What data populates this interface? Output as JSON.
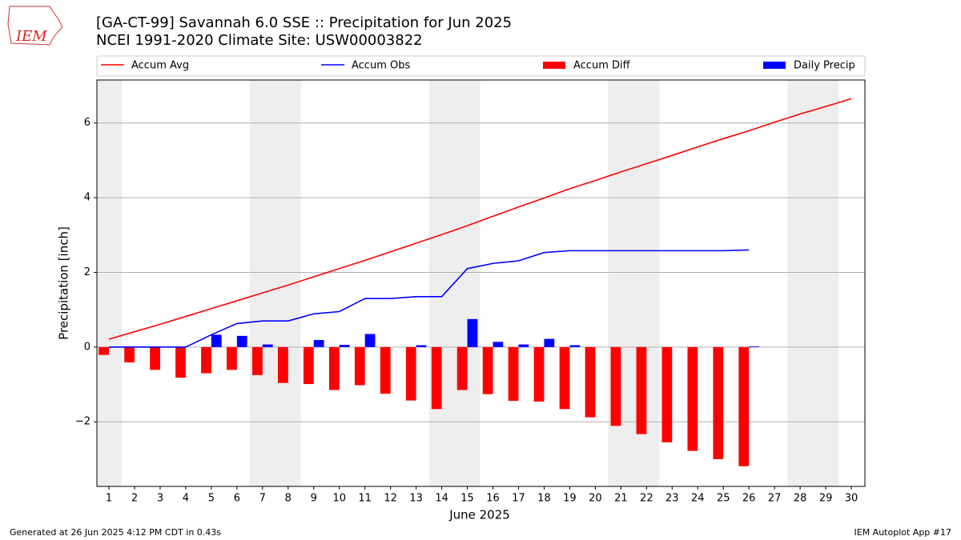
{
  "chart_data": {
    "type": "bar_line",
    "title": "[GA-CT-99] Savannah 6.0 SSE :: Precipitation for Jun 2025",
    "subtitle": "NCEI 1991-2020 Climate Site: USW00003822",
    "xlabel": "June 2025",
    "ylabel": "Precipitation [inch]",
    "logo_text": "IEM",
    "footer_left": "Generated at 26 Jun 2025 4:12 PM CDT in 0.43s",
    "footer_right": "IEM Autoplot App #17",
    "x": [
      1,
      2,
      3,
      4,
      5,
      6,
      7,
      8,
      9,
      10,
      11,
      12,
      13,
      14,
      15,
      16,
      17,
      18,
      19,
      20,
      21,
      22,
      23,
      24,
      25,
      26,
      27,
      28,
      29,
      30
    ],
    "xlim": [
      0.53,
      30.53
    ],
    "xticks": [
      1,
      2,
      3,
      4,
      5,
      6,
      7,
      8,
      9,
      10,
      11,
      12,
      13,
      14,
      15,
      16,
      17,
      18,
      19,
      20,
      21,
      22,
      23,
      24,
      25,
      26,
      27,
      28,
      29,
      30
    ],
    "ylim": [
      -3.73,
      7.15
    ],
    "yticks": [
      {
        "value": -2,
        "label": "−2"
      },
      0,
      2,
      4,
      6
    ],
    "grid": true,
    "shaded_spans": [
      [
        0.5,
        1.5
      ],
      [
        6.5,
        8.5
      ],
      [
        13.5,
        15.5
      ],
      [
        20.5,
        22.5
      ],
      [
        27.5,
        29.5
      ]
    ],
    "shade_color": "#eeeeee",
    "series": [
      {
        "name": "Accum Avg",
        "kind": "line",
        "color": "#ff0000",
        "values": [
          0.21,
          0.41,
          0.61,
          0.82,
          1.03,
          1.24,
          1.45,
          1.66,
          1.88,
          2.1,
          2.32,
          2.55,
          2.78,
          3.01,
          3.25,
          3.5,
          3.75,
          3.99,
          4.24,
          4.46,
          4.69,
          4.91,
          5.13,
          5.36,
          5.58,
          5.79,
          6.02,
          6.24,
          6.44,
          6.65
        ]
      },
      {
        "name": "Accum Obs",
        "kind": "line",
        "color": "#0000ff",
        "values": [
          0,
          0,
          0,
          0,
          0.33,
          0.63,
          0.7,
          0.7,
          0.89,
          0.95,
          1.3,
          1.3,
          1.35,
          1.35,
          2.1,
          2.24,
          2.31,
          2.53,
          2.58,
          2.58,
          2.58,
          2.58,
          2.58,
          2.58,
          2.58,
          2.6,
          null,
          null,
          null,
          null
        ]
      },
      {
        "name": "Accum Diff",
        "kind": "bar",
        "offset": -0.4,
        "width": 0.4,
        "color": "#ff0000",
        "values": [
          -0.21,
          -0.41,
          -0.61,
          -0.82,
          -0.7,
          -0.61,
          -0.75,
          -0.96,
          -0.99,
          -1.15,
          -1.02,
          -1.25,
          -1.43,
          -1.66,
          -1.15,
          -1.26,
          -1.44,
          -1.46,
          -1.66,
          -1.88,
          -2.11,
          -2.33,
          -2.55,
          -2.78,
          -3.0,
          -3.19,
          null,
          null,
          null,
          null
        ]
      },
      {
        "name": "Daily Precip",
        "kind": "bar",
        "offset": 0,
        "width": 0.4,
        "color": "#0000ff",
        "values": [
          0,
          0,
          0,
          0,
          0.33,
          0.3,
          0.07,
          0,
          0.19,
          0.06,
          0.35,
          0,
          0.05,
          0,
          0.75,
          0.14,
          0.07,
          0.22,
          0.05,
          0,
          0,
          0,
          0,
          0,
          0,
          0.02,
          null,
          null,
          null,
          null
        ]
      }
    ]
  }
}
